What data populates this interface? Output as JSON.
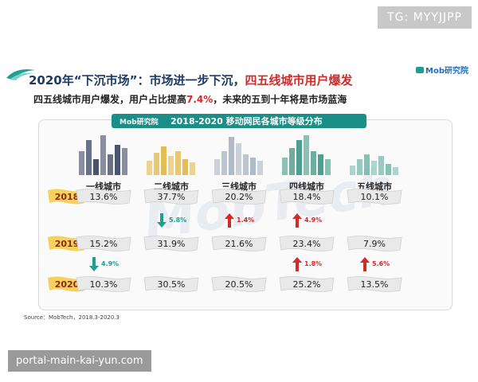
{
  "watermarks": {
    "tg": "TG: MYYJJPP",
    "url": "portal-main-kai-yun.com",
    "background": "MobTech"
  },
  "header": {
    "title_prefix": "2020年“下沉市场”：市场进一步下沉，",
    "title_highlight": "四五线城市用户爆发",
    "subtitle_prefix": "四五线城市用户爆发，用户占比提高",
    "subtitle_highlight": "7.4%",
    "subtitle_suffix": "，未来的五到十年将是市场蓝海",
    "logo": "Mob研究院"
  },
  "colors": {
    "teal": "#1a8f88",
    "red": "#d32a2a",
    "navy": "#1f3b63"
  },
  "chart_data": {
    "type": "table",
    "title": "2018-2020 移动网民各城市等级分布",
    "brand": "Mob研究院",
    "columns": [
      "一线城市",
      "二线城市",
      "三线城市",
      "四线城市",
      "五线城市"
    ],
    "rows": [
      {
        "year": "2018",
        "values": [
          "13.6%",
          "37.7%",
          "20.2%",
          "18.4%",
          "10.1%"
        ]
      },
      {
        "year": "2019",
        "values": [
          "15.2%",
          "31.9%",
          "21.6%",
          "23.4%",
          "7.9%"
        ]
      },
      {
        "year": "2020",
        "values": [
          "10.3%",
          "30.5%",
          "20.5%",
          "25.2%",
          "13.5%"
        ]
      }
    ],
    "annotations": [
      {
        "text": "5.8%",
        "direction": "down",
        "column": "二线城市",
        "between": [
          "2018",
          "2019"
        ]
      },
      {
        "text": "1.4%",
        "direction": "up",
        "column": "三线城市",
        "between": [
          "2018",
          "2019"
        ]
      },
      {
        "text": "4.9%",
        "direction": "up",
        "column": "四线城市",
        "between": [
          "2018",
          "2019"
        ]
      },
      {
        "text": "4.9%",
        "direction": "down",
        "column": "一线城市",
        "between": [
          "2019",
          "2020"
        ]
      },
      {
        "text": "1.8%",
        "direction": "up",
        "column": "四线城市",
        "between": [
          "2019",
          "2020"
        ]
      },
      {
        "text": "5.6%",
        "direction": "up",
        "column": "五线城市",
        "between": [
          "2019",
          "2020"
        ]
      }
    ]
  },
  "source": "Source：MobTech，2018.3-2020.3"
}
